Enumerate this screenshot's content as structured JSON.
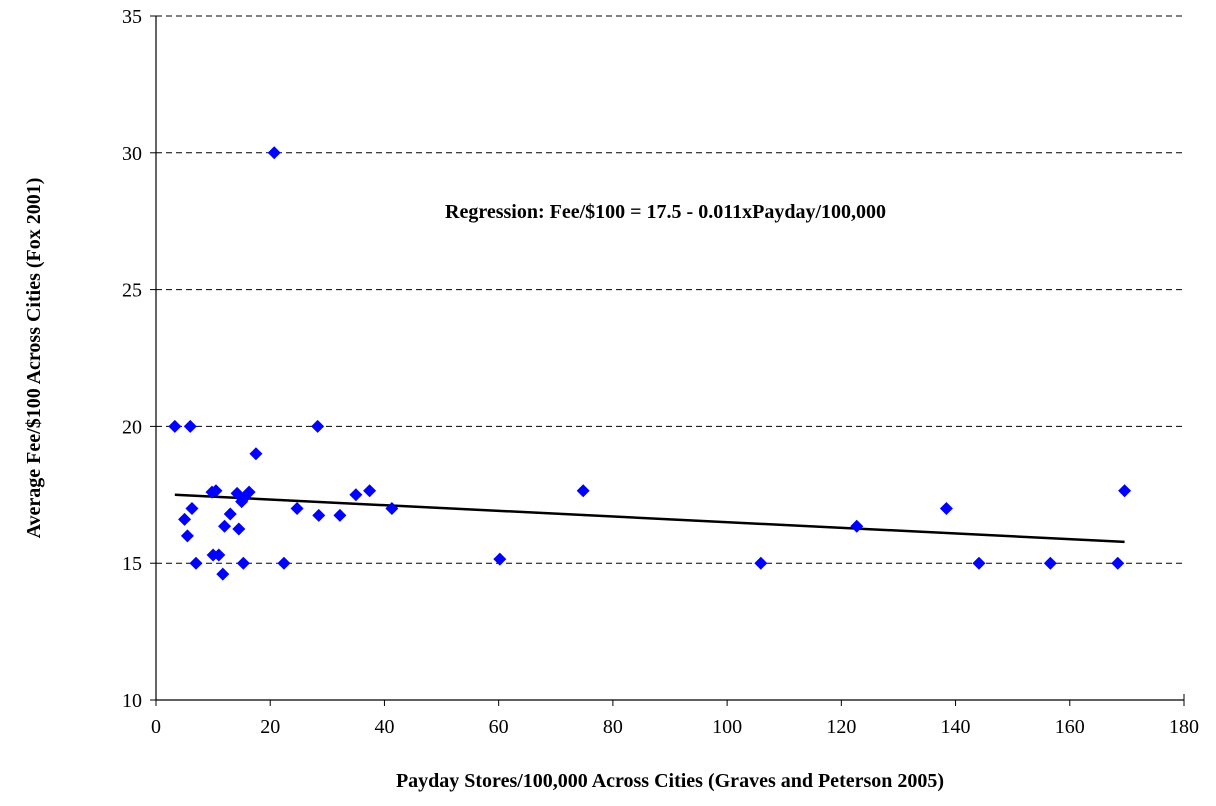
{
  "chart_data": {
    "type": "scatter",
    "title": "",
    "xlabel": "Payday Stores/100,000 Across Cities (Graves and Peterson 2005)",
    "ylabel": "Average Fee/$100 Across Cities (Fox 2001)",
    "xlim": [
      0,
      180
    ],
    "ylim": [
      10,
      35
    ],
    "x_ticks": [
      0,
      20,
      40,
      60,
      80,
      100,
      120,
      140,
      160,
      180
    ],
    "y_ticks": [
      10,
      15,
      20,
      25,
      30,
      35
    ],
    "grid": "horizontal dashed",
    "legend": "none",
    "marker_color": "#0000ff",
    "line_color": "#000000",
    "annotation": "Regression:  Fee/$100 = 17.5  - 0.011xPayday/100,000",
    "points": [
      {
        "x": 3.3,
        "y": 20.0
      },
      {
        "x": 5.0,
        "y": 16.6
      },
      {
        "x": 5.5,
        "y": 16.0
      },
      {
        "x": 6.0,
        "y": 20.0
      },
      {
        "x": 6.3,
        "y": 17.0
      },
      {
        "x": 7.0,
        "y": 15.0
      },
      {
        "x": 9.8,
        "y": 17.6
      },
      {
        "x": 10.0,
        "y": 15.3
      },
      {
        "x": 10.5,
        "y": 17.65
      },
      {
        "x": 11.0,
        "y": 15.3
      },
      {
        "x": 11.7,
        "y": 14.6
      },
      {
        "x": 12.0,
        "y": 16.35
      },
      {
        "x": 13.0,
        "y": 16.8
      },
      {
        "x": 14.2,
        "y": 17.55
      },
      {
        "x": 14.5,
        "y": 16.25
      },
      {
        "x": 15.0,
        "y": 17.25
      },
      {
        "x": 15.3,
        "y": 15.0
      },
      {
        "x": 15.5,
        "y": 17.4
      },
      {
        "x": 16.3,
        "y": 17.6
      },
      {
        "x": 17.5,
        "y": 19.0
      },
      {
        "x": 20.7,
        "y": 30.0
      },
      {
        "x": 22.4,
        "y": 15.0
      },
      {
        "x": 24.7,
        "y": 17.0
      },
      {
        "x": 28.3,
        "y": 20.0
      },
      {
        "x": 28.5,
        "y": 16.75
      },
      {
        "x": 32.2,
        "y": 16.75
      },
      {
        "x": 35.0,
        "y": 17.5
      },
      {
        "x": 37.4,
        "y": 17.65
      },
      {
        "x": 41.3,
        "y": 17.0
      },
      {
        "x": 60.2,
        "y": 15.15
      },
      {
        "x": 74.8,
        "y": 17.65
      },
      {
        "x": 105.9,
        "y": 15.0
      },
      {
        "x": 122.7,
        "y": 16.35
      },
      {
        "x": 138.4,
        "y": 17.0
      },
      {
        "x": 144.1,
        "y": 15.0
      },
      {
        "x": 156.6,
        "y": 15.0
      },
      {
        "x": 168.4,
        "y": 15.0
      },
      {
        "x": 169.6,
        "y": 17.65
      }
    ],
    "regression_line": {
      "x": [
        3.3,
        169.6
      ],
      "y": [
        17.5,
        15.78
      ]
    }
  }
}
